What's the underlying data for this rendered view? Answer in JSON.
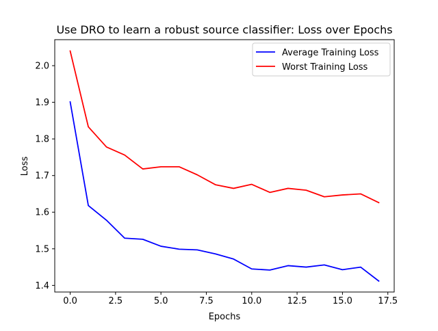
{
  "chart_data": {
    "type": "line",
    "title": "Use DRO to learn a robust source classifier: Loss over Epochs",
    "xlabel": "Epochs",
    "ylabel": "Loss",
    "xlim": [
      -0.85,
      17.85
    ],
    "ylim": [
      1.382,
      2.071
    ],
    "xticks": [
      0,
      2.5,
      5,
      7.5,
      10,
      12.5,
      15,
      17.5
    ],
    "xtick_labels": [
      "0.0",
      "2.5",
      "5.0",
      "7.5",
      "10.0",
      "12.5",
      "15.0",
      "17.5"
    ],
    "yticks": [
      1.4,
      1.5,
      1.6,
      1.7,
      1.8,
      1.9,
      2.0
    ],
    "ytick_labels": [
      "1.4",
      "1.5",
      "1.6",
      "1.7",
      "1.8",
      "1.9",
      "2.0"
    ],
    "grid": false,
    "legend_position": "upper right",
    "x": [
      0,
      1,
      2,
      3,
      4,
      5,
      6,
      7,
      8,
      9,
      10,
      11,
      12,
      13,
      14,
      15,
      16,
      17
    ],
    "series": [
      {
        "name": "Average Training Loss",
        "color": "#0000ff",
        "values": [
          1.901,
          1.618,
          1.578,
          1.529,
          1.526,
          1.507,
          1.499,
          1.497,
          1.486,
          1.472,
          1.445,
          1.442,
          1.454,
          1.45,
          1.456,
          1.443,
          1.45,
          1.412
        ]
      },
      {
        "name": "Worst Training Loss",
        "color": "#ff0000",
        "values": [
          2.04,
          1.833,
          1.778,
          1.756,
          1.718,
          1.724,
          1.724,
          1.702,
          1.675,
          1.665,
          1.676,
          1.654,
          1.665,
          1.66,
          1.642,
          1.647,
          1.65,
          1.626
        ]
      }
    ]
  }
}
